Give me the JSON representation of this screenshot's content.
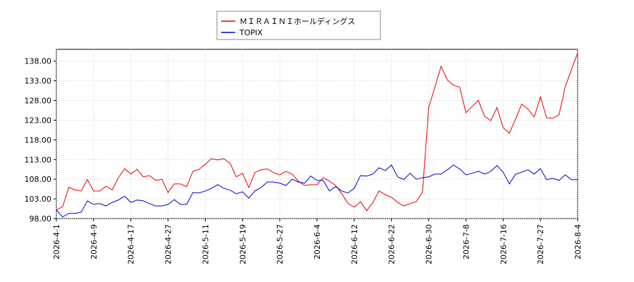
{
  "chart_data": {
    "type": "line",
    "categories": [
      "2026-4-1",
      null,
      null,
      null,
      null,
      null,
      "2026-4-9",
      null,
      null,
      null,
      null,
      null,
      "2026-4-17",
      null,
      null,
      null,
      null,
      null,
      "2026-4-27",
      null,
      null,
      null,
      null,
      null,
      "2026-5-11",
      null,
      null,
      null,
      null,
      null,
      "2026-5-19",
      null,
      null,
      null,
      null,
      null,
      "2026-5-27",
      null,
      null,
      null,
      null,
      null,
      "2026-6-4",
      null,
      null,
      null,
      null,
      null,
      "2026-6-12",
      null,
      null,
      null,
      null,
      null,
      "2026-6-22",
      null,
      null,
      null,
      null,
      null,
      "2026-6-30",
      null,
      null,
      null,
      null,
      null,
      "2026-7-8",
      null,
      null,
      null,
      null,
      null,
      "2026-7-16",
      null,
      null,
      null,
      null,
      null,
      "2026-7-27",
      null,
      null,
      null,
      null,
      null,
      "2026-8-4"
    ],
    "series": [
      {
        "name": "ＭＩＲＡＩＮＩホールディングス",
        "color": "#e00000",
        "values": [
          100.2,
          101,
          105.9,
          105.3,
          105,
          107.9,
          105,
          105,
          106.2,
          105.3,
          108.4,
          110.7,
          109.3,
          110.5,
          108.6,
          108.9,
          107.7,
          108,
          104.6,
          106.8,
          106.8,
          106.1,
          110,
          110.5,
          111.8,
          113.2,
          112.9,
          113.2,
          112,
          108.6,
          109.5,
          105.9,
          109.7,
          110.4,
          110.6,
          109.7,
          109.1,
          110,
          109.3,
          107.5,
          106.4,
          106.6,
          106.6,
          108.4,
          107.5,
          106.4,
          104.3,
          101.8,
          100.9,
          102.3,
          100,
          102.1,
          105,
          104.1,
          103.4,
          102.1,
          101.2,
          101.8,
          102.3,
          104.8,
          126.2,
          131.4,
          136.7,
          133.2,
          131.9,
          131.4,
          124.9,
          126.5,
          128,
          124,
          122.9,
          126.2,
          121.1,
          119.7,
          123.3,
          127.1,
          125.8,
          123.8,
          128.9,
          123.6,
          123.5,
          124.4,
          131.5,
          135.8,
          140.1
        ]
      },
      {
        "name": "TOPIX",
        "color": "#0000d0",
        "values": [
          100.2,
          98.4,
          99.3,
          99.3,
          99.6,
          102.5,
          101.6,
          101.8,
          101.2,
          102.1,
          102.7,
          103.7,
          102.1,
          102.7,
          102.5,
          101.8,
          101.2,
          101.2,
          101.6,
          102.8,
          101.6,
          101.6,
          104.6,
          104.5,
          105,
          105.7,
          106.6,
          105.7,
          105.2,
          104.3,
          104.8,
          103.2,
          105,
          105.9,
          107.3,
          107.3,
          107,
          106.4,
          108,
          107.3,
          107,
          108.8,
          107.7,
          107.7,
          105,
          106.1,
          105,
          104.5,
          105.7,
          108.9,
          108.8,
          109.3,
          110.9,
          110.2,
          111.6,
          108.6,
          107.9,
          109.5,
          108,
          108.4,
          108.6,
          109.3,
          109.3,
          110.4,
          111.6,
          110.6,
          109.1,
          109.5,
          110,
          109.3,
          110,
          111.5,
          109.8,
          106.8,
          109.3,
          109.8,
          110.4,
          109.3,
          110.7,
          107.9,
          108.2,
          107.7,
          109.1,
          107.9,
          107.9
        ]
      }
    ],
    "ylim": [
      98,
      141
    ],
    "yticks": [
      {
        "value": 98,
        "label": "98.00"
      },
      {
        "value": 103,
        "label": "103.00"
      },
      {
        "value": 108,
        "label": "108.00"
      },
      {
        "value": 113,
        "label": "113.00"
      },
      {
        "value": 118,
        "label": "118.00"
      },
      {
        "value": 123,
        "label": "123.00"
      },
      {
        "value": 128,
        "label": "128.00"
      },
      {
        "value": 133,
        "label": "133.00"
      },
      {
        "value": 138,
        "label": "138.00"
      }
    ],
    "grid": true
  }
}
